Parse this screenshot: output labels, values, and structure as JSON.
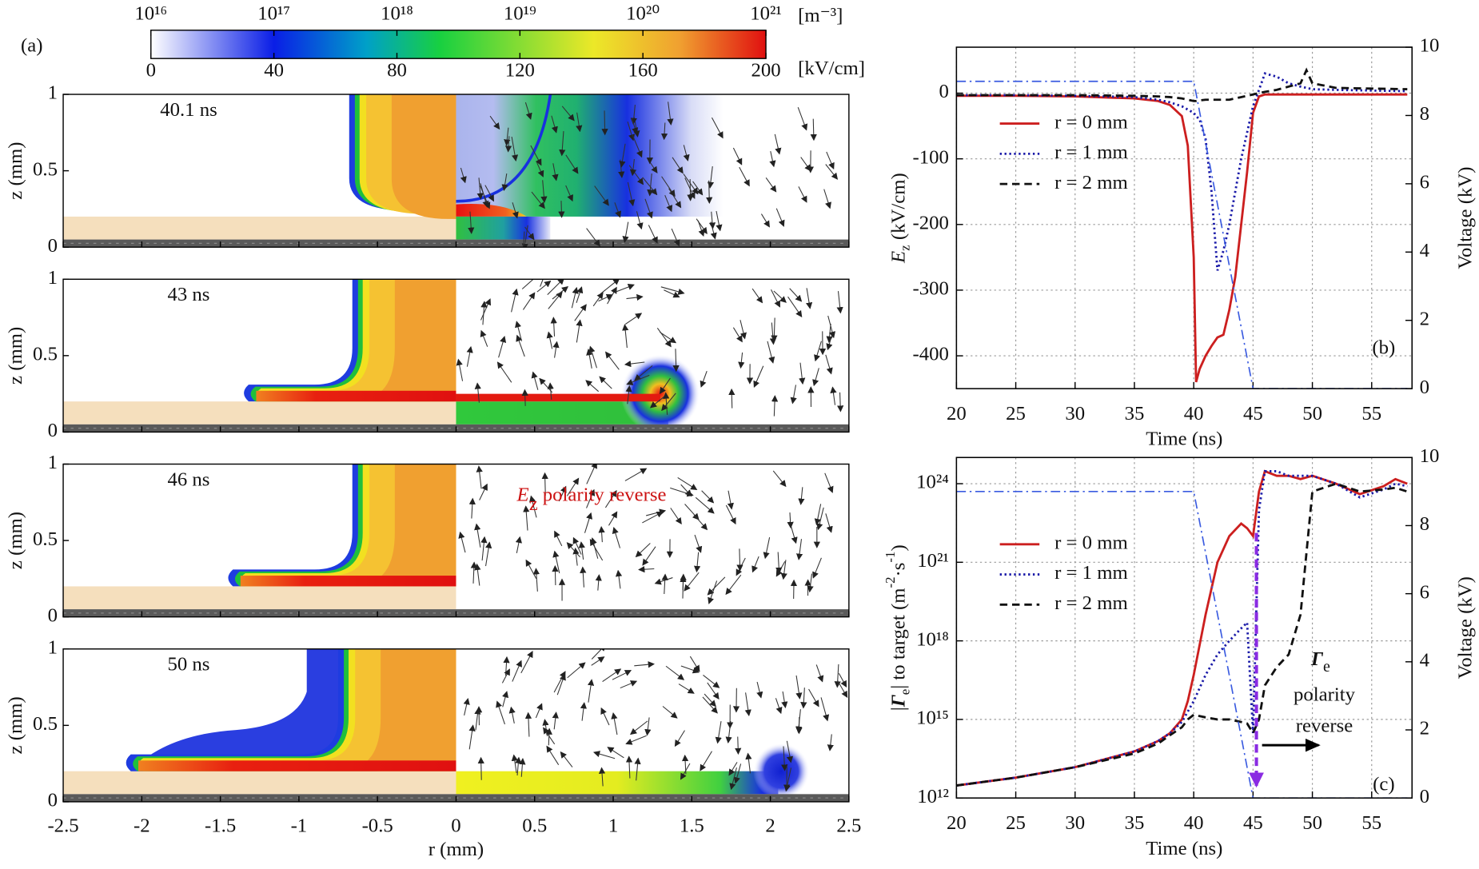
{
  "chart_data": [
    {
      "type": "contour",
      "label": "(a)",
      "colorbar": {
        "density_labels": [
          {
            "value": 16,
            "label": "10¹⁶"
          },
          {
            "value": 17,
            "label": "10¹⁷"
          },
          {
            "value": 18,
            "label": "10¹⁸"
          },
          {
            "value": 19,
            "label": "10¹⁹"
          },
          {
            "value": 20,
            "label": "10²⁰"
          },
          {
            "value": 21,
            "label": "10²¹"
          }
        ],
        "density_lim": [
          16,
          21
        ],
        "density_unit": "[m⁻³]",
        "field_ticks": [
          0,
          40,
          80,
          120,
          160,
          200
        ],
        "field_lim": [
          0,
          200
        ],
        "field_unit": "[kV/cm]"
      },
      "panels": [
        {
          "time": "40.1 ns"
        },
        {
          "time": "43 ns"
        },
        {
          "time": "46 ns",
          "annotation": {
            "parts": [
              "E",
              "z",
              " polarity reverse"
            ],
            "styles": [
              "italic",
              "sub",
              "plain"
            ]
          }
        },
        {
          "time": "50 ns"
        }
      ],
      "xlim": [
        -2.5,
        2.5
      ],
      "xticks": [
        -2.5,
        -2,
        -1.5,
        -1,
        -0.5,
        0,
        0.5,
        1,
        1.5,
        2,
        2.5
      ],
      "ylim": [
        0,
        1
      ],
      "yticks": [
        0,
        0.5,
        1
      ],
      "xlabel": "r (mm)",
      "ylabel": "z (mm)"
    },
    {
      "type": "line",
      "label": "(b)",
      "x": [
        20,
        25,
        30,
        35,
        37,
        38,
        39,
        39.5,
        40,
        40.2,
        40.5,
        41,
        41.5,
        42,
        42.5,
        43,
        43.5,
        44,
        44.5,
        45,
        45.5,
        46,
        47,
        48,
        49,
        49.5,
        50,
        52,
        55,
        58
      ],
      "series": [
        {
          "name": "r = 0 mm",
          "color": "#cc1f1f",
          "dash": "solid",
          "values": [
            -4,
            -4,
            -5,
            -8,
            -12,
            -18,
            -35,
            -80,
            -250,
            -440,
            -420,
            -400,
            -385,
            -372,
            -368,
            -330,
            -280,
            -200,
            -120,
            -30,
            -5,
            -2,
            -2,
            -2,
            -2,
            -2,
            -2,
            -2,
            -2,
            -2
          ]
        },
        {
          "name": "r = 1 mm",
          "color": "#1a1aa8",
          "dash": "dotted",
          "values": [
            -3,
            -3,
            -4,
            -6,
            -10,
            -14,
            -20,
            -25,
            -30,
            -35,
            -40,
            -70,
            -150,
            -270,
            -240,
            -200,
            -150,
            -100,
            -60,
            -20,
            5,
            30,
            25,
            15,
            10,
            8,
            6,
            5,
            4,
            3
          ]
        },
        {
          "name": "r = 2 mm",
          "color": "#111111",
          "dash": "dashed",
          "values": [
            -3,
            -3,
            -3,
            -4,
            -5,
            -6,
            -8,
            -10,
            -12,
            -12,
            -11,
            -10,
            -10,
            -10,
            -10,
            -10,
            -8,
            -6,
            -4,
            -2,
            0,
            2,
            5,
            10,
            15,
            35,
            15,
            8,
            7,
            6
          ]
        },
        {
          "color": "#3a5be0",
          "dash": "dashdot",
          "axis": "y2",
          "values": [
            9,
            9,
            9,
            9,
            9,
            9,
            9,
            9,
            9,
            8.64,
            8.1,
            7.2,
            6.3,
            5.4,
            4.5,
            3.6,
            2.7,
            1.8,
            0.9,
            0,
            0,
            0,
            0,
            0,
            0,
            0,
            0,
            0,
            0,
            0
          ]
        }
      ],
      "xlim": [
        20,
        58.4
      ],
      "xticks": [
        20,
        25,
        30,
        35,
        40,
        45,
        50,
        55
      ],
      "ylim": [
        -450,
        70
      ],
      "yticks": [
        -400,
        -300,
        -200,
        -100,
        0
      ],
      "y2lim": [
        0,
        10
      ],
      "y2ticks": [
        0,
        2,
        4,
        6,
        8,
        10
      ],
      "grid": true,
      "legend": "upper left",
      "xlabel": "Time (ns)",
      "ylabel": {
        "parts": [
          "E",
          "z",
          " (kV/cm)"
        ],
        "styles": [
          "italic",
          "sub",
          "plain"
        ]
      },
      "y2label": "Voltage (kV)"
    },
    {
      "type": "line",
      "label": "(c)",
      "log_y": true,
      "x": [
        20,
        25,
        30,
        35,
        37,
        38,
        39,
        39.5,
        40,
        41,
        42,
        43,
        44,
        44.5,
        45,
        45.5,
        46,
        47,
        48,
        49,
        50,
        52,
        54,
        56,
        57,
        58
      ],
      "series": [
        {
          "name": "r = 0 mm",
          "color": "#cc1f1f",
          "dash": "solid",
          "values": [
            3000000000000.0,
            6000000000000.0,
            15000000000000.0,
            60000000000000.0,
            150000000000000.0,
            300000000000000.0,
            1000000000000000.0,
            5000000000000000.0,
            5e+16,
            1e+19,
            1e+21,
            1e+22,
            3e+22,
            2e+22,
            1e+22,
            5e+23,
            3e+24,
            2e+24,
            2e+24,
            1.5e+24,
            2e+24,
            1e+24,
            4e+23,
            8e+23,
            1.5e+24,
            1e+24
          ]
        },
        {
          "name": "r = 1 mm",
          "color": "#1a1aa8",
          "dash": "dotted",
          "values": [
            3000000000000.0,
            6000000000000.0,
            15000000000000.0,
            60000000000000.0,
            150000000000000.0,
            300000000000000.0,
            800000000000000.0,
            2000000000000000.0,
            5000000000000000.0,
            5e+16,
            3e+17,
            1e+18,
            3e+18,
            5e+18,
            300000000000000.0,
            1e+23,
            3e+24,
            3e+24,
            2e+24,
            2e+24,
            2e+24,
            1e+24,
            3e+23,
            6e+23,
            1e+24,
            8e+23
          ]
        },
        {
          "name": "r = 2 mm",
          "color": "#111111",
          "dash": "dashed",
          "values": [
            3000000000000.0,
            6000000000000.0,
            15000000000000.0,
            50000000000000.0,
            120000000000000.0,
            250000000000000.0,
            500000000000000.0,
            1000000000000000.0,
            1500000000000000.0,
            1200000000000000.0,
            1000000000000000.0,
            1000000000000000.0,
            800000000000000.0,
            700000000000000.0,
            300000000000000.0,
            1000000000000000.0,
            2e+16,
            1e+17,
            3e+17,
            1e+19,
            5e+23,
            1e+24,
            5e+23,
            6e+23,
            7e+23,
            5e+23
          ]
        },
        {
          "color": "#3a5be0",
          "dash": "dashdot",
          "axis": "y2",
          "values": [
            9,
            9,
            9,
            9,
            9,
            9,
            9,
            9,
            9,
            7.2,
            5.4,
            3.6,
            1.8,
            0.9,
            0,
            0,
            0,
            0,
            0,
            0,
            0,
            0,
            0,
            0,
            0,
            0
          ]
        }
      ],
      "xlim": [
        20,
        58.4
      ],
      "xticks": [
        20,
        25,
        30,
        35,
        40,
        45,
        50,
        55
      ],
      "ylim": [
        1000000000000.0,
        1e+25
      ],
      "yticks": [
        {
          "value": 1000000000000.0,
          "label": "10¹²"
        },
        {
          "value": 1000000000000000.0,
          "label": "10¹⁵"
        },
        {
          "value": 1e+18,
          "label": "10¹⁸"
        },
        {
          "value": 1e+21,
          "label": "10²¹"
        },
        {
          "value": 1e+24,
          "label": "10²⁴"
        }
      ],
      "y2lim": [
        0,
        10
      ],
      "y2ticks": [
        0,
        2,
        4,
        6,
        8,
        10
      ],
      "grid": true,
      "legend": "upper left",
      "xlabel": "Time (ns)",
      "ylabel": {
        "parts": [
          "|",
          "Γ",
          "e",
          "| to target (m",
          "-2",
          "·s",
          "-1",
          ")"
        ],
        "styles": [
          "plain",
          "bold-italic",
          "sub",
          "plain",
          "sup",
          "plain",
          "sup",
          "plain"
        ]
      },
      "y2label": "Voltage (kV)",
      "annotation": {
        "parts": [
          "Γ",
          "e"
        ],
        "styles": [
          "bold-italic",
          "sub"
        ],
        "lines": [
          "polarity",
          "reverse"
        ]
      }
    }
  ]
}
